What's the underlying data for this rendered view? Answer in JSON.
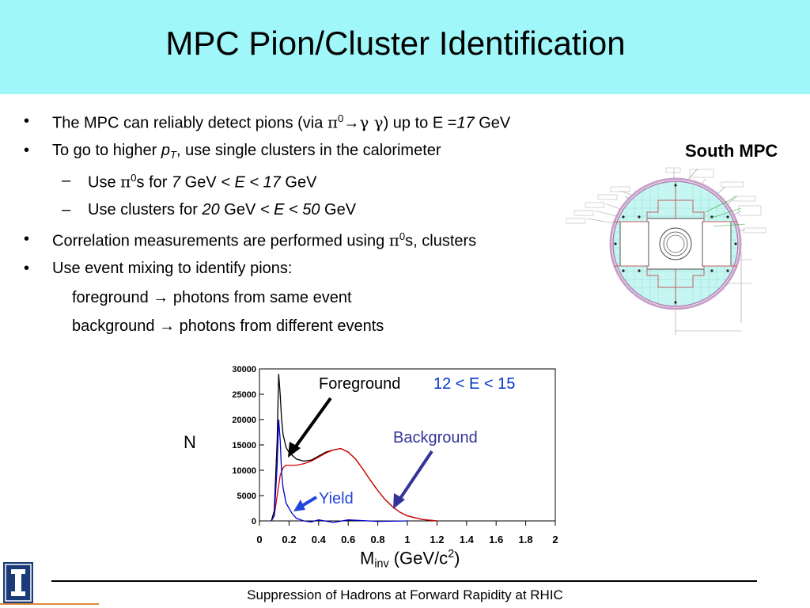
{
  "slide": {
    "title": "MPC Pion/Cluster Identification",
    "bullets": {
      "b1": {
        "pre": "The MPC can reliably detect pions (via ",
        "pi": "π",
        "sup0": "0",
        "arrow": "→",
        "gammas": "γ γ",
        "post": ") up to  E =",
        "val": "17",
        "unit": " GeV"
      },
      "b2": {
        "pre": "To go to higher ",
        "p": "p",
        "sub": "T",
        "post": ", use single clusters in the calorimeter"
      },
      "s1": {
        "pre": "Use ",
        "pi": "π",
        "sup0": "0",
        "mid": "s for ",
        "v1": "7",
        "mid2": " GeV ",
        "cond": " < E < 17",
        "unit": " GeV"
      },
      "s2": {
        "pre": "Use clusters for ",
        "v1": "20",
        "mid2": " GeV ",
        "cond": " < E < 50",
        "unit": " GeV"
      },
      "b3": {
        "pre": "Correlation measurements are performed using ",
        "pi": "π",
        "sup0": "0",
        "post": "s, clusters"
      },
      "b4": {
        "text": "Use event mixing to identify pions:"
      },
      "l1": {
        "pre": "foreground ",
        "arrow": "→",
        "post": " photons from same event"
      },
      "l2": {
        "pre": "background ",
        "arrow": "→",
        "post": " photons from different events"
      },
      "bullet_char": "•",
      "dash_char": "–"
    },
    "south_mpc": "South MPC",
    "footer": "Suppression of Hadrons at Forward Rapidity at RHIC"
  },
  "chart_data": {
    "type": "line",
    "xlabel": {
      "main": "M",
      "sub": "inv",
      "rest": " (GeV/c",
      "sup": "2",
      "close": ")"
    },
    "ylabel": "N",
    "xlim": [
      0,
      2
    ],
    "ylim": [
      0,
      30000
    ],
    "x_ticks": [
      "0",
      "0.2",
      "0.4",
      "0.6",
      "0.8",
      "1",
      "1.2",
      "1.4",
      "1.6",
      "1.8",
      "2"
    ],
    "y_ticks": [
      "0",
      "5000",
      "10000",
      "15000",
      "20000",
      "25000",
      "30000"
    ],
    "annotations": {
      "foreground": "Foreground",
      "energy_range": "12 < E < 15",
      "background": "Background",
      "yield": "Yield"
    },
    "series": [
      {
        "name": "Foreground",
        "color": "#000000",
        "x": [
          0.08,
          0.1,
          0.12,
          0.13,
          0.14,
          0.15,
          0.16,
          0.18,
          0.2,
          0.25,
          0.3,
          0.35,
          0.4,
          0.45,
          0.5,
          0.55,
          0.6,
          0.65,
          0.7,
          0.75,
          0.8,
          0.85,
          0.9,
          0.95,
          1.0,
          1.1,
          1.2
        ],
        "y": [
          0,
          2000,
          16000,
          29000,
          25000,
          20000,
          17000,
          14500,
          13500,
          12200,
          11800,
          12000,
          12800,
          13600,
          14000,
          14300,
          13600,
          12200,
          10200,
          8000,
          6000,
          4200,
          2800,
          1700,
          1000,
          300,
          0
        ]
      },
      {
        "name": "Background",
        "color": "#dd0000",
        "x": [
          0.08,
          0.1,
          0.12,
          0.14,
          0.16,
          0.18,
          0.2,
          0.25,
          0.3,
          0.35,
          0.4,
          0.45,
          0.5,
          0.55,
          0.6,
          0.65,
          0.7,
          0.75,
          0.8,
          0.85,
          0.9,
          0.95,
          1.0,
          1.1,
          1.2
        ],
        "y": [
          0,
          1000,
          5000,
          9000,
          10500,
          11000,
          11000,
          11000,
          11300,
          11800,
          12600,
          13400,
          14000,
          14300,
          13600,
          12200,
          10200,
          8000,
          6000,
          4200,
          2800,
          1700,
          1000,
          300,
          0
        ]
      },
      {
        "name": "Yield",
        "color": "#0000cc",
        "x": [
          0.08,
          0.1,
          0.12,
          0.13,
          0.14,
          0.15,
          0.16,
          0.18,
          0.2,
          0.22,
          0.25,
          0.3,
          0.35,
          0.4,
          0.5,
          0.6,
          0.8,
          1.0
        ],
        "y": [
          0,
          1000,
          11000,
          20000,
          16000,
          9500,
          6500,
          3500,
          2500,
          1500,
          500,
          0,
          -200,
          200,
          -300,
          200,
          -100,
          0
        ]
      }
    ]
  }
}
